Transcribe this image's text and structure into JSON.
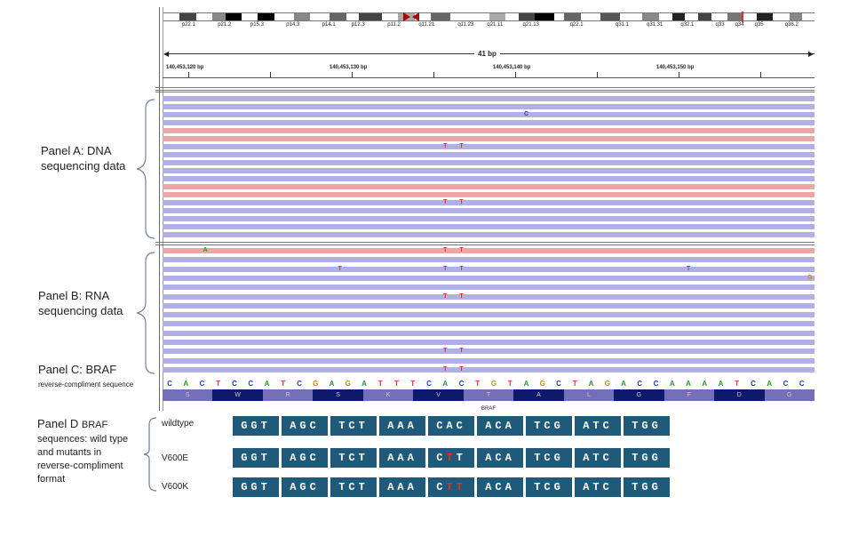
{
  "ideogram": {
    "bands": [
      "p22.1",
      "p21.2",
      "p15.3",
      "p14.3",
      "p14.1",
      "p12.3",
      "p11.2",
      "q11.21",
      "q11.23",
      "q21.11",
      "q21.13",
      "q22.1",
      "q31.1",
      "q31.31",
      "q32.1",
      "q33",
      "q34",
      "q35",
      "q36.2"
    ]
  },
  "ruler": {
    "span": "41 bp",
    "positions": [
      "140,453,120 bp",
      "140,453,130 bp",
      "140,453,140 bp",
      "140,453,150 bp"
    ]
  },
  "panels": {
    "a": "Panel A: DNA\nsequencing data",
    "b": "Panel B: RNA\nsequencing data",
    "c_title": "Panel C: BRAF",
    "c_sub": "reverse-compliment sequence",
    "d_title": "Panel D ",
    "d_title_small": "BRAF",
    "d_body": "sequences: wild type\nand mutants in\nreverse-compliment\nformat"
  },
  "reference": {
    "sequence": [
      "C",
      "A",
      "C",
      "T",
      "C",
      "C",
      "A",
      "T",
      "C",
      "G",
      "A",
      "G",
      "A",
      "T",
      "T",
      "T",
      "C",
      "A",
      "C",
      "T",
      "G",
      "T",
      "A",
      "G",
      "C",
      "T",
      "A",
      "G",
      "A",
      "C",
      "C",
      "A",
      "A",
      "A",
      "A",
      "T",
      "C",
      "A",
      "C",
      "C"
    ],
    "amino_acids": [
      "S",
      "W",
      "R",
      "S",
      "K",
      "V",
      "T",
      "A",
      "L",
      "G",
      "F",
      "D",
      "G"
    ],
    "gene": "BRAF",
    "colors": {
      "A": "#20a020",
      "C": "#1a3cc9",
      "G": "#d28a00",
      "T": "#e0302a"
    }
  },
  "reads": {
    "forward_color": "#b0b0e6",
    "reverse_color": "#e9a8a8",
    "dna_strands": [
      "f",
      "f",
      "f",
      "f",
      "r",
      "r",
      "f",
      "f",
      "f",
      "f",
      "f",
      "r",
      "r",
      "f",
      "f",
      "f",
      "f",
      "f"
    ],
    "dna_mismatches": [
      {
        "row": 2,
        "pos": 22,
        "base": "C"
      },
      {
        "row": 6,
        "pos": 17,
        "base": "T"
      },
      {
        "row": 6,
        "pos": 18,
        "base": "T"
      },
      {
        "row": 13,
        "pos": 17,
        "base": "T"
      },
      {
        "row": 13,
        "pos": 18,
        "base": "T"
      }
    ],
    "rna_strands": [
      "r",
      "f",
      "f",
      "f",
      "f",
      "f",
      "f",
      "f",
      "f",
      "f",
      "f",
      "f",
      "f",
      "f"
    ],
    "rna_mismatches": [
      {
        "row": 0,
        "pos": 2.2,
        "base": "A"
      },
      {
        "row": 0,
        "pos": 17,
        "base": "T"
      },
      {
        "row": 0,
        "pos": 18,
        "base": "T"
      },
      {
        "row": 2,
        "pos": 10.5,
        "base": "T"
      },
      {
        "row": 2,
        "pos": 17,
        "base": "T"
      },
      {
        "row": 2,
        "pos": 18,
        "base": "T"
      },
      {
        "row": 2,
        "pos": 32,
        "base": "T"
      },
      {
        "row": 3,
        "pos": 39.5,
        "base": "G"
      },
      {
        "row": 5,
        "pos": 17,
        "base": "T"
      },
      {
        "row": 5,
        "pos": 18,
        "base": "T"
      },
      {
        "row": 11,
        "pos": 17,
        "base": "T"
      },
      {
        "row": 11,
        "pos": 18,
        "base": "T"
      },
      {
        "row": 13,
        "pos": 17,
        "base": "T"
      },
      {
        "row": 13,
        "pos": 18,
        "base": "T"
      }
    ]
  },
  "codon_rows": [
    {
      "label": "wildtype",
      "codons": [
        [
          "GGT"
        ],
        [
          "AGC"
        ],
        [
          "TCT"
        ],
        [
          "AAA"
        ],
        [
          "CAC"
        ],
        [
          "ACA"
        ],
        [
          "TCG"
        ],
        [
          "ATC"
        ],
        [
          "TGG"
        ]
      ]
    },
    {
      "label": "V600E",
      "codons": [
        [
          "GGT"
        ],
        [
          "AGC"
        ],
        [
          "TCT"
        ],
        [
          "AAA"
        ],
        [
          "C",
          "T",
          "T-mut-post"
        ],
        [
          "ACA"
        ],
        [
          "TCG"
        ],
        [
          "ATC"
        ],
        [
          "TGG"
        ]
      ]
    },
    {
      "label": "V600K",
      "codons": [
        [
          "GGT"
        ],
        [
          "AGC"
        ],
        [
          "TCT"
        ],
        [
          "AAA"
        ],
        [
          "C",
          "TT"
        ],
        [
          "ACA"
        ],
        [
          "TCG"
        ],
        [
          "ATC"
        ],
        [
          "TGG"
        ]
      ]
    }
  ]
}
